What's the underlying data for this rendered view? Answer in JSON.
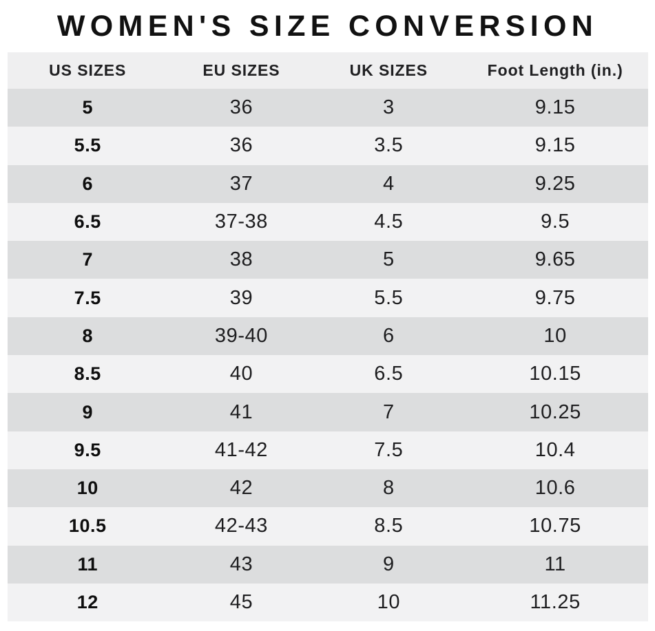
{
  "title": "WOMEN'S SIZE CONVERSION",
  "chart_data": {
    "type": "table",
    "title": "WOMEN'S SIZE CONVERSION",
    "columns": [
      "US SIZES",
      "EU SIZES",
      "UK SIZES",
      "Foot Length (in.)"
    ],
    "rows": [
      [
        "5",
        "36",
        "3",
        "9.15"
      ],
      [
        "5.5",
        "36",
        "3.5",
        "9.15"
      ],
      [
        "6",
        "37",
        "4",
        "9.25"
      ],
      [
        "6.5",
        "37-38",
        "4.5",
        "9.5"
      ],
      [
        "7",
        "38",
        "5",
        "9.65"
      ],
      [
        "7.5",
        "39",
        "5.5",
        "9.75"
      ],
      [
        "8",
        "39-40",
        "6",
        "10"
      ],
      [
        "8.5",
        "40",
        "6.5",
        "10.15"
      ],
      [
        "9",
        "41",
        "7",
        "10.25"
      ],
      [
        "9.5",
        "41-42",
        "7.5",
        "10.4"
      ],
      [
        "10",
        "42",
        "8",
        "10.6"
      ],
      [
        "10.5",
        "42-43",
        "8.5",
        "10.75"
      ],
      [
        "11",
        "43",
        "9",
        "11"
      ],
      [
        "12",
        "45",
        "10",
        "11.25"
      ]
    ],
    "layout": {
      "stripe_pattern": "odd-rows-dark",
      "first_column_bold": true
    }
  },
  "colors": {
    "page_bg": "#ffffff",
    "header_bg": "#efeff0",
    "row_dark": "#dcddde",
    "row_light": "#f2f2f3",
    "text": "#1d1d1f",
    "title": "#111111"
  }
}
